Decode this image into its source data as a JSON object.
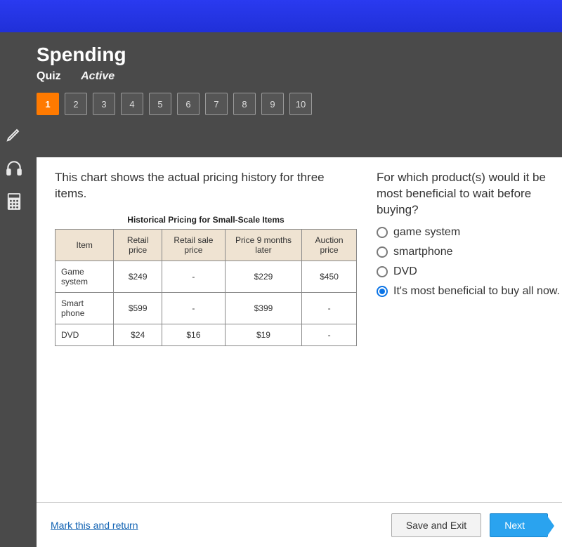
{
  "header": {
    "title": "Spending",
    "tab_quiz": "Quiz",
    "tab_active": "Active"
  },
  "nav": {
    "items": [
      "1",
      "2",
      "3",
      "4",
      "5",
      "6",
      "7",
      "8",
      "9",
      "10"
    ],
    "current_index": 0
  },
  "tools": [
    {
      "name": "pencil-icon"
    },
    {
      "name": "headphones-icon"
    },
    {
      "name": "calculator-icon"
    }
  ],
  "question": {
    "left_prompt": "This chart shows the actual pricing history for three items.",
    "right_prompt": "For which product(s) would it be most beneficial to wait before buying?",
    "table": {
      "title": "Historical Pricing for Small-Scale Items",
      "columns": [
        "Item",
        "Retail price",
        "Retail sale price",
        "Price 9 months later",
        "Auction price"
      ],
      "rows": [
        [
          "Game system",
          "$249",
          "-",
          "$229",
          "$450"
        ],
        [
          "Smart phone",
          "$599",
          "-",
          "$399",
          "-"
        ],
        [
          "DVD",
          "$24",
          "$16",
          "$19",
          "-"
        ]
      ],
      "header_bg": "#efe3d2",
      "border_color": "#888888"
    },
    "choices": [
      {
        "label": "game system",
        "selected": false
      },
      {
        "label": "smartphone",
        "selected": false
      },
      {
        "label": "DVD",
        "selected": false
      },
      {
        "label": "It's most beneficial to buy all now.",
        "selected": true
      }
    ]
  },
  "footer": {
    "mark_return": "Mark this and return",
    "save_exit": "Save and Exit",
    "next": "Next"
  },
  "colors": {
    "accent": "#ff7a00",
    "primary_blue": "#2aa3ef",
    "topbar": "#2a3af0",
    "app_bg": "#4a4a4a"
  }
}
